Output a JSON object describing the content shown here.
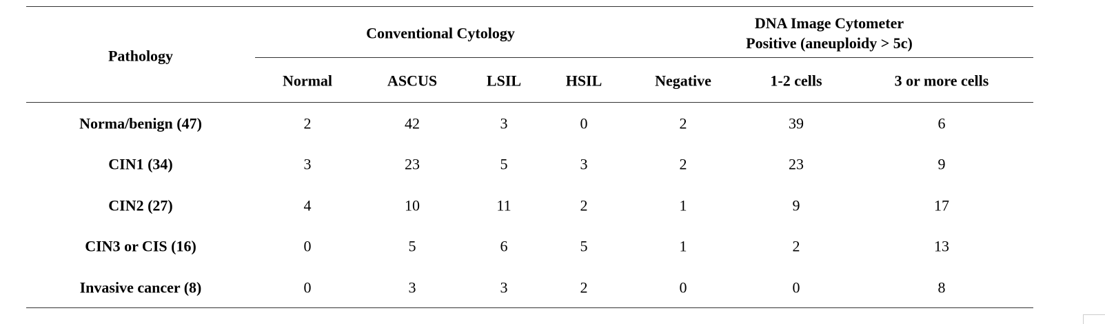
{
  "table": {
    "row_header": "Pathology",
    "group1": {
      "label": "Conventional Cytology"
    },
    "group2": {
      "line1": "DNA Image Cytometer",
      "line2": "Positive (aneuploidy > 5c)"
    },
    "columns": [
      "Normal",
      "ASCUS",
      "LSIL",
      "HSIL",
      "Negative",
      "1-2 cells",
      "3 or more cells"
    ],
    "rows": [
      {
        "label": "Norma/benign (47)",
        "values": [
          "2",
          "42",
          "3",
          "0",
          "2",
          "39",
          "6"
        ]
      },
      {
        "label": "CIN1 (34)",
        "values": [
          "3",
          "23",
          "5",
          "3",
          "2",
          "23",
          "9"
        ]
      },
      {
        "label": "CIN2 (27)",
        "values": [
          "4",
          "10",
          "11",
          "2",
          "1",
          "9",
          "17"
        ]
      },
      {
        "label": "CIN3 or CIS (16)",
        "values": [
          "0",
          "5",
          "6",
          "5",
          "1",
          "2",
          "13"
        ]
      },
      {
        "label": "Invasive cancer (8)",
        "values": [
          "0",
          "3",
          "3",
          "2",
          "0",
          "0",
          "8"
        ]
      }
    ]
  }
}
